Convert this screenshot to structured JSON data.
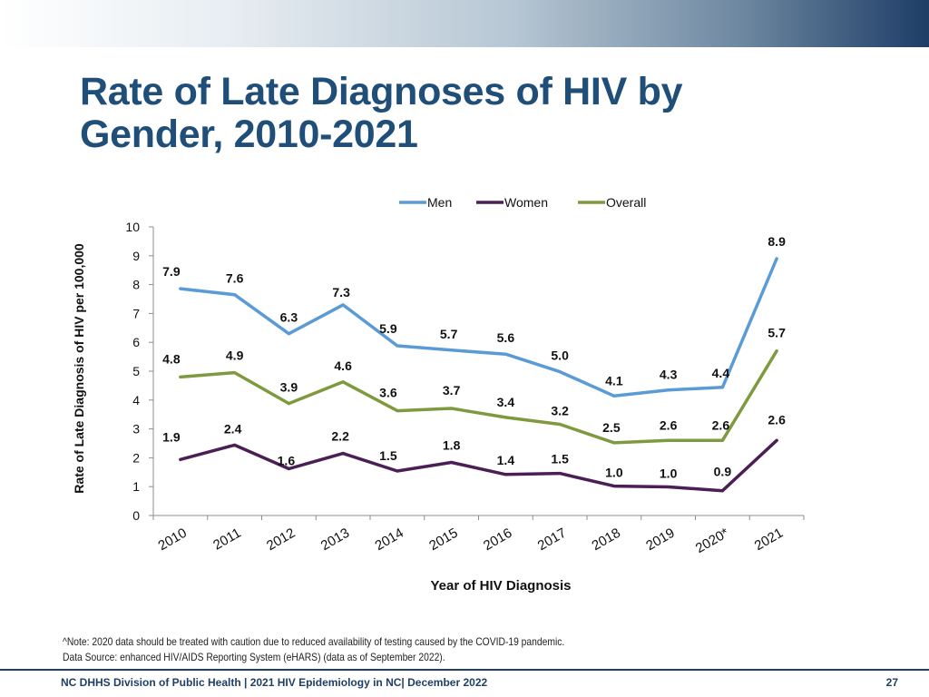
{
  "title": {
    "line1": "Rate of Late Diagnoses of HIV by",
    "line2": "Gender, 2010-2021"
  },
  "chart_data": {
    "type": "line",
    "title": "Rate of Late Diagnoses of HIV by Gender, 2010-2021",
    "xlabel": "Year of HIV Diagnosis",
    "ylabel": "Rate of Late Diagnosis of HIV per 100,000",
    "ylim": [
      0,
      10
    ],
    "yticks": [
      0,
      1,
      2,
      3,
      4,
      5,
      6,
      7,
      8,
      9,
      10
    ],
    "categories": [
      "2010",
      "2011",
      "2012",
      "2013",
      "2014",
      "2015",
      "2016",
      "2017",
      "2018",
      "2019",
      "2020*",
      "2021"
    ],
    "legend_position": "top",
    "series": [
      {
        "name": "Men",
        "color": "#5b9bd5",
        "values": [
          7.86,
          7.65,
          6.3,
          7.3,
          5.88,
          5.73,
          5.59,
          4.98,
          4.14,
          4.35,
          4.44,
          8.9
        ],
        "labels": [
          "7.9",
          "7.6",
          "6.3",
          "7.3",
          "5.9",
          "5.7",
          "5.6",
          "5.0",
          "4.1",
          "4.3",
          "4.4",
          "8.9"
        ]
      },
      {
        "name": "Women",
        "color": "#4b1f55",
        "values": [
          1.94,
          2.44,
          1.62,
          2.15,
          1.54,
          1.84,
          1.42,
          1.46,
          1.02,
          0.99,
          0.86,
          2.6
        ],
        "labels": [
          "1.9",
          "2.4",
          "1.6",
          "2.2",
          "1.5",
          "1.8",
          "1.4",
          "1.5",
          "1.0",
          "1.0",
          "0.9",
          "2.6"
        ]
      },
      {
        "name": "Overall",
        "color": "#7f9a3e",
        "values": [
          4.8,
          4.95,
          3.88,
          4.63,
          3.63,
          3.71,
          3.4,
          3.16,
          2.52,
          2.6,
          2.6,
          5.7
        ],
        "labels": [
          "4.8",
          "4.9",
          "3.9",
          "4.6",
          "3.6",
          "3.7",
          "3.4",
          "3.2",
          "2.5",
          "2.6",
          "2.6",
          "5.7"
        ]
      }
    ]
  },
  "note": {
    "line1": "^Note: 2020 data should be treated with caution due to reduced availability of testing caused by the COVID-19 pandemic.",
    "line2": "Data Source: enhanced HIV/AIDS Reporting System (eHARS) (data as of September 2022)."
  },
  "footer": {
    "text": "NC DHHS Division of Public Health | 2021 HIV Epidemiology in NC| December 2022",
    "page": "27"
  }
}
